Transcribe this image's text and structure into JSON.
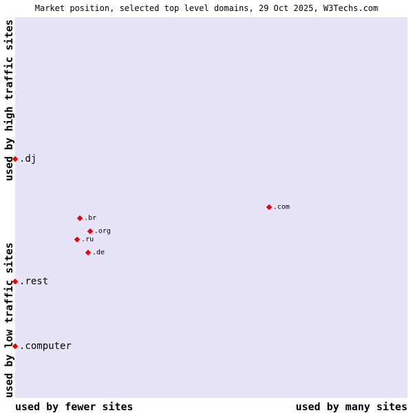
{
  "title": "Market position, selected top level domains, 29 Oct 2025, W3Techs.com",
  "axis_labels": {
    "y_top": "used by high traffic sites",
    "y_bottom": "used by low traffic sites",
    "x_left": "used by fewer sites",
    "x_right": "used by many sites"
  },
  "colors": {
    "plot_background": "#e8e4f8",
    "marker": "#ee0000",
    "label_text": "#000000"
  },
  "chart_data": {
    "type": "scatter",
    "title": "Market position, selected top level domains, 29 Oct 2025, W3Techs.com",
    "xlabel_left": "used by fewer sites",
    "xlabel_right": "used by many sites",
    "ylabel_top": "used by high traffic sites",
    "ylabel_bottom": "used by low traffic sites",
    "x_range": [
      0,
      100
    ],
    "y_range": [
      0,
      100
    ],
    "grid": false,
    "legend": false,
    "marker_shape": "diamond",
    "points": [
      {
        "label": ".dj",
        "x": 0,
        "y": 62.7,
        "label_size": "large"
      },
      {
        "label": ".com",
        "x": 64.7,
        "y": 50.1,
        "label_size": "small"
      },
      {
        "label": ".br",
        "x": 16.5,
        "y": 47.2,
        "label_size": "small"
      },
      {
        "label": ".org",
        "x": 19.1,
        "y": 43.8,
        "label_size": "small"
      },
      {
        "label": ".ru",
        "x": 15.8,
        "y": 41.6,
        "label_size": "small"
      },
      {
        "label": ".de",
        "x": 18.6,
        "y": 38.2,
        "label_size": "small"
      },
      {
        "label": ".rest",
        "x": 0,
        "y": 30.6,
        "label_size": "large"
      },
      {
        "label": ".computer",
        "x": 0,
        "y": 13.6,
        "label_size": "large"
      }
    ]
  }
}
